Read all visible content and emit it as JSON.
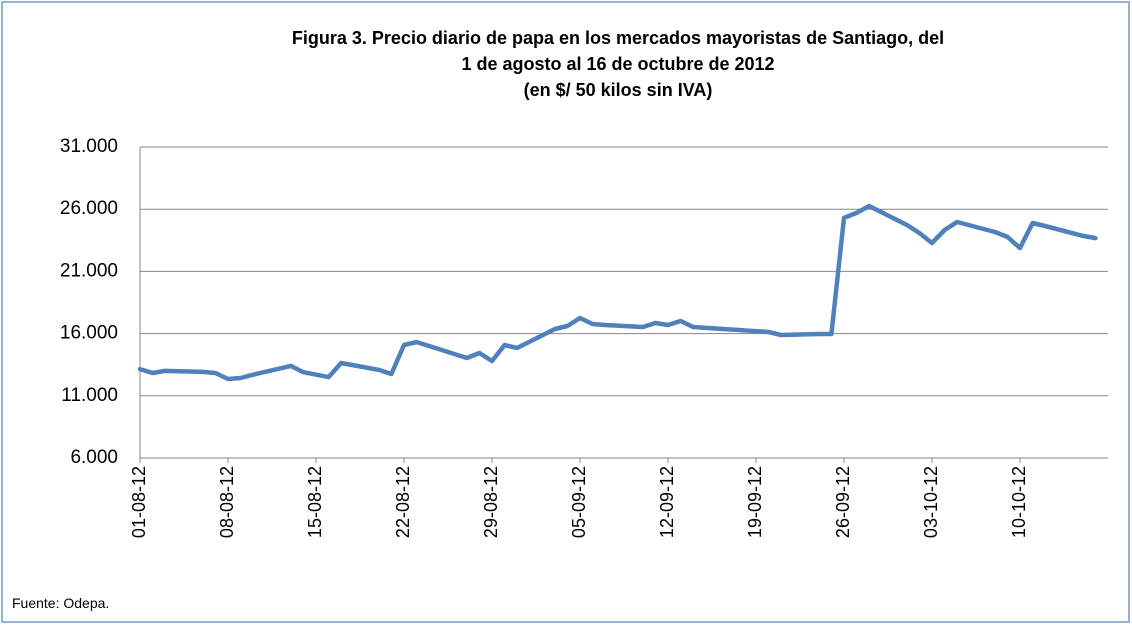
{
  "chart_data": {
    "type": "line",
    "title": [
      "Figura 3.  Precio diario de papa en los mercados mayoristas de Santiago, del",
      "1 de agosto al 16 de octubre de 2012",
      "(en $/ 50 kilos sin IVA)"
    ],
    "x": [
      "01-08-12",
      "02-08-12",
      "03-08-12",
      "06-08-12",
      "07-08-12",
      "08-08-12",
      "09-08-12",
      "10-08-12",
      "13-08-12",
      "14-08-12",
      "16-08-12",
      "17-08-12",
      "20-08-12",
      "21-08-12",
      "22-08-12",
      "23-08-12",
      "24-08-12",
      "27-08-12",
      "28-08-12",
      "29-08-12",
      "30-08-12",
      "31-08-12",
      "03-09-12",
      "04-09-12",
      "05-09-12",
      "06-09-12",
      "07-09-12",
      "10-09-12",
      "11-09-12",
      "12-09-12",
      "13-09-12",
      "14-09-12",
      "20-09-12",
      "21-09-12",
      "24-09-12",
      "25-09-12",
      "26-09-12",
      "27-09-12",
      "28-09-12",
      "01-10-12",
      "02-10-12",
      "03-10-12",
      "04-10-12",
      "05-10-12",
      "08-10-12",
      "09-10-12",
      "10-10-12",
      "11-10-12",
      "12-10-12",
      "15-10-12",
      "16-10-12"
    ],
    "series": [
      {
        "name": "Precio",
        "color": "#4f81bd",
        "values": [
          13150,
          12830,
          13000,
          12920,
          12830,
          12350,
          12430,
          12700,
          13400,
          12900,
          12500,
          13640,
          13080,
          12750,
          15080,
          15320,
          15000,
          14040,
          14440,
          13800,
          15080,
          14840,
          16370,
          16610,
          17250,
          16770,
          16690,
          16530,
          16850,
          16690,
          17010,
          16530,
          16130,
          15890,
          15970,
          15970,
          25300,
          25700,
          26260,
          24730,
          24090,
          23280,
          24330,
          24970,
          24170,
          23770,
          22880,
          24890,
          24650,
          23850,
          23680
        ]
      }
    ],
    "xlim": [
      "01-08-12",
      "17-10-12"
    ],
    "xticks": [
      "01-08-12",
      "08-08-12",
      "15-08-12",
      "22-08-12",
      "29-08-12",
      "05-09-12",
      "12-09-12",
      "19-09-12",
      "26-09-12",
      "03-10-12",
      "10-10-12"
    ],
    "ylim": [
      6000,
      31000
    ],
    "yticks": [
      {
        "value": 6000,
        "label": "6.000"
      },
      {
        "value": 11000,
        "label": "11.000"
      },
      {
        "value": 16000,
        "label": "16.000"
      },
      {
        "value": 21000,
        "label": "21.000"
      },
      {
        "value": 26000,
        "label": "26.000"
      },
      {
        "value": 31000,
        "label": "31.000"
      }
    ],
    "grid": true,
    "source": "Fuente: Odepa."
  }
}
